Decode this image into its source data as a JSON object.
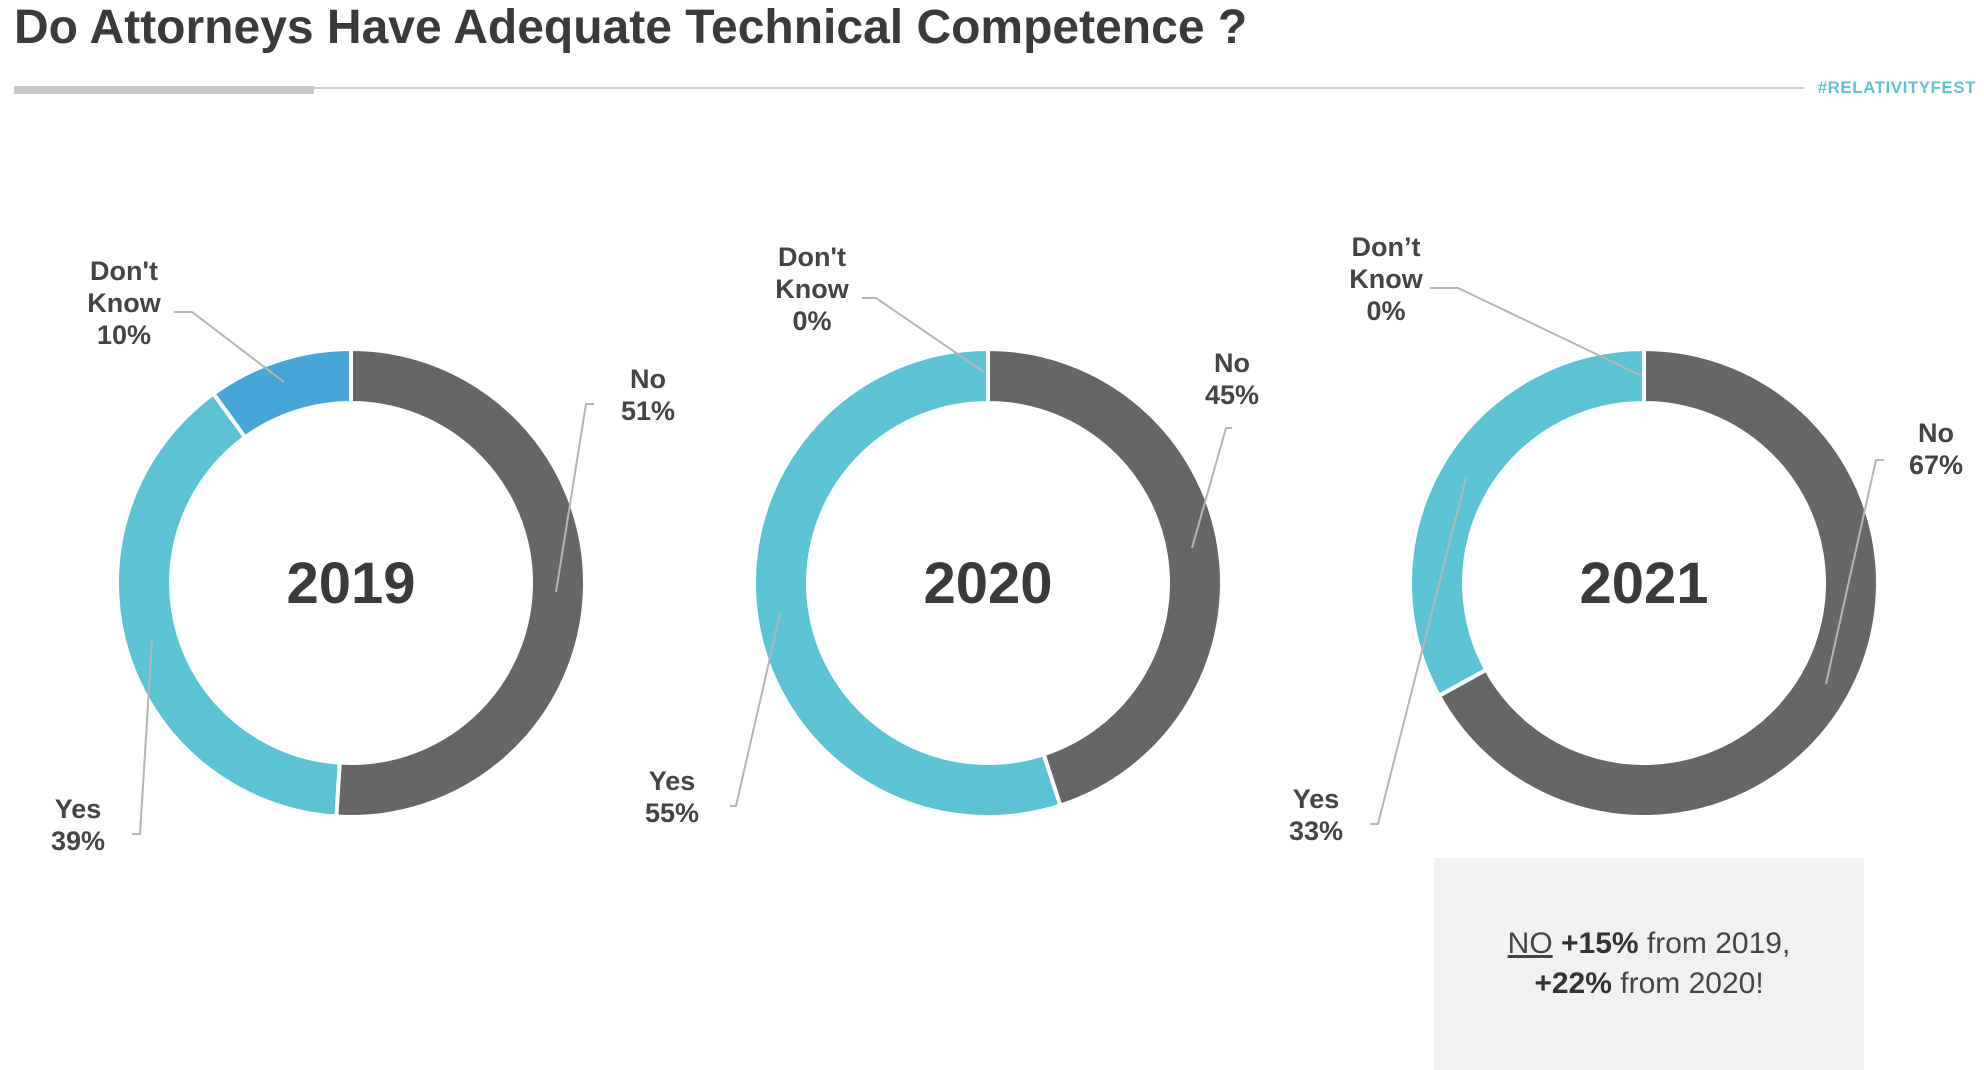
{
  "slide": {
    "title": "Do Attorneys Have Adequate Technical Competence ?",
    "hashtag": "#RELATIVITYFEST"
  },
  "note": {
    "word": "NO",
    "delta_1": "+15%",
    "from_1": " from 2019,",
    "delta_2": "+22%",
    "from_2": " from 2020!"
  },
  "colors": {
    "no": "#666666",
    "yes": "#5bc3d4",
    "dont_know": "#47a6d8",
    "label": "#444444",
    "leader": "#b5b5b5"
  },
  "chart_data": [
    {
      "type": "pie",
      "center_label": "2019",
      "slices": [
        {
          "label": "No",
          "value": 51,
          "value_label": "51%"
        },
        {
          "label": "Yes",
          "value": 39,
          "value_label": "39%"
        },
        {
          "label": "Don't Know",
          "value": 10,
          "value_label": "10%"
        }
      ]
    },
    {
      "type": "pie",
      "center_label": "2020",
      "slices": [
        {
          "label": "No",
          "value": 45,
          "value_label": "45%"
        },
        {
          "label": "Yes",
          "value": 55,
          "value_label": "55%"
        },
        {
          "label": "Don't Know",
          "value": 0,
          "value_label": "0%"
        }
      ]
    },
    {
      "type": "pie",
      "center_label": "2021",
      "slices": [
        {
          "label": "No",
          "value": 67,
          "value_label": "67%"
        },
        {
          "label": "Yes",
          "value": 33,
          "value_label": "33%"
        },
        {
          "label": "Don’t Know",
          "value": 0,
          "value_label": "0%"
        }
      ]
    }
  ]
}
